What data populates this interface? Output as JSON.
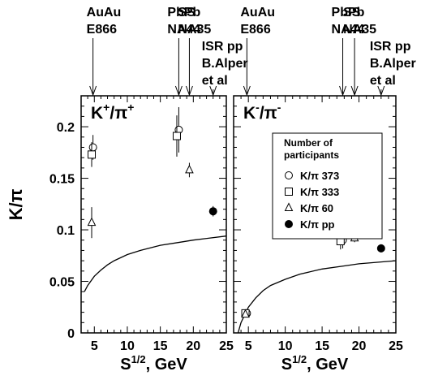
{
  "chart_data": [
    {
      "type": "scatter",
      "panel_label": "K⁺/π⁺",
      "xlabel": "S^{1/2}, GeV",
      "ylabel": "K/π",
      "xlim": [
        3,
        25
      ],
      "ylim": [
        0,
        0.23
      ],
      "x_ticks": [
        5,
        10,
        15,
        20,
        25
      ],
      "y_ticks": [
        0,
        0.05,
        0.1,
        0.15,
        0.2
      ],
      "y_tick_labels": [
        "0",
        "0.05",
        "0.1",
        "0.15",
        "0.2"
      ],
      "experiments": [
        {
          "lines": [
            "AuAu",
            "E866"
          ],
          "x": 4.8
        },
        {
          "lines": [
            "PbPb",
            "NA44"
          ],
          "x": 17.8
        },
        {
          "lines": [
            "SS",
            "NA35"
          ],
          "x": 19.4
        },
        {
          "lines": [
            "ISR pp",
            "B.Alper",
            "et al"
          ],
          "x": 23.0
        }
      ],
      "series": [
        {
          "name": "K/π 373",
          "marker": "circle-open",
          "points": [
            {
              "x": 4.8,
              "y": 0.18,
              "err": 0.012
            },
            {
              "x": 17.8,
              "y": 0.197,
              "err": 0.022
            }
          ]
        },
        {
          "name": "K/π 333",
          "marker": "square-open",
          "points": [
            {
              "x": 4.6,
              "y": 0.173,
              "err": 0.012
            },
            {
              "x": 17.5,
              "y": 0.191,
              "err": 0.02
            }
          ]
        },
        {
          "name": "K/π 60",
          "marker": "triangle-open",
          "points": [
            {
              "x": 4.6,
              "y": 0.107,
              "err": 0.015
            },
            {
              "x": 19.4,
              "y": 0.158,
              "err": 0.007
            }
          ]
        },
        {
          "name": "K/π pp",
          "marker": "circle-filled",
          "points": [
            {
              "x": 23.0,
              "y": 0.118,
              "err": 0.005
            }
          ]
        }
      ],
      "curve": [
        [
          3.5,
          0.04
        ],
        [
          4,
          0.046
        ],
        [
          5,
          0.055
        ],
        [
          6,
          0.061
        ],
        [
          7,
          0.066
        ],
        [
          8,
          0.07
        ],
        [
          10,
          0.076
        ],
        [
          12,
          0.08
        ],
        [
          15,
          0.085
        ],
        [
          18,
          0.088
        ],
        [
          20,
          0.09
        ],
        [
          25,
          0.094
        ]
      ]
    },
    {
      "type": "scatter",
      "panel_label": "K⁻/π⁻",
      "xlabel": "S^{1/2}, GeV",
      "xlim": [
        3,
        25
      ],
      "ylim": [
        0,
        0.23
      ],
      "x_ticks": [
        5,
        10,
        15,
        20,
        25
      ],
      "experiments": [
        {
          "lines": [
            "AuAu",
            "E866"
          ],
          "x": 4.8
        },
        {
          "lines": [
            "PbPb",
            "NA44"
          ],
          "x": 17.8
        },
        {
          "lines": [
            "SS",
            "NA35"
          ],
          "x": 19.4
        },
        {
          "lines": [
            "ISR pp",
            "B.Alper",
            "et al"
          ],
          "x": 23.0
        }
      ],
      "legend": {
        "title": [
          "Number of",
          "participants"
        ],
        "placement": "top-right"
      },
      "series": [
        {
          "name": "K/π 373",
          "marker": "circle-open",
          "points": [
            {
              "x": 4.8,
              "y": 0.019,
              "err": 0.003
            },
            {
              "x": 17.8,
              "y": 0.09,
              "err": 0.008
            }
          ]
        },
        {
          "name": "K/π 333",
          "marker": "square-open",
          "points": [
            {
              "x": 4.6,
              "y": 0.019,
              "err": 0.003
            },
            {
              "x": 17.5,
              "y": 0.089,
              "err": 0.008
            }
          ]
        },
        {
          "name": "K/π 60",
          "marker": "triangle-open",
          "points": [
            {
              "x": 4.6,
              "y": 0.018,
              "err": 0.003
            },
            {
              "x": 19.4,
              "y": 0.092,
              "err": 0.004
            }
          ]
        },
        {
          "name": "K/π pp",
          "marker": "circle-filled",
          "points": [
            {
              "x": 23.0,
              "y": 0.082,
              "err": 0.004
            }
          ]
        }
      ],
      "curve": [
        [
          3.6,
          0.0
        ],
        [
          4,
          0.01
        ],
        [
          5,
          0.025
        ],
        [
          6,
          0.034
        ],
        [
          7,
          0.041
        ],
        [
          8,
          0.046
        ],
        [
          10,
          0.052
        ],
        [
          12,
          0.057
        ],
        [
          15,
          0.062
        ],
        [
          18,
          0.065
        ],
        [
          20,
          0.067
        ],
        [
          25,
          0.07
        ]
      ]
    }
  ]
}
